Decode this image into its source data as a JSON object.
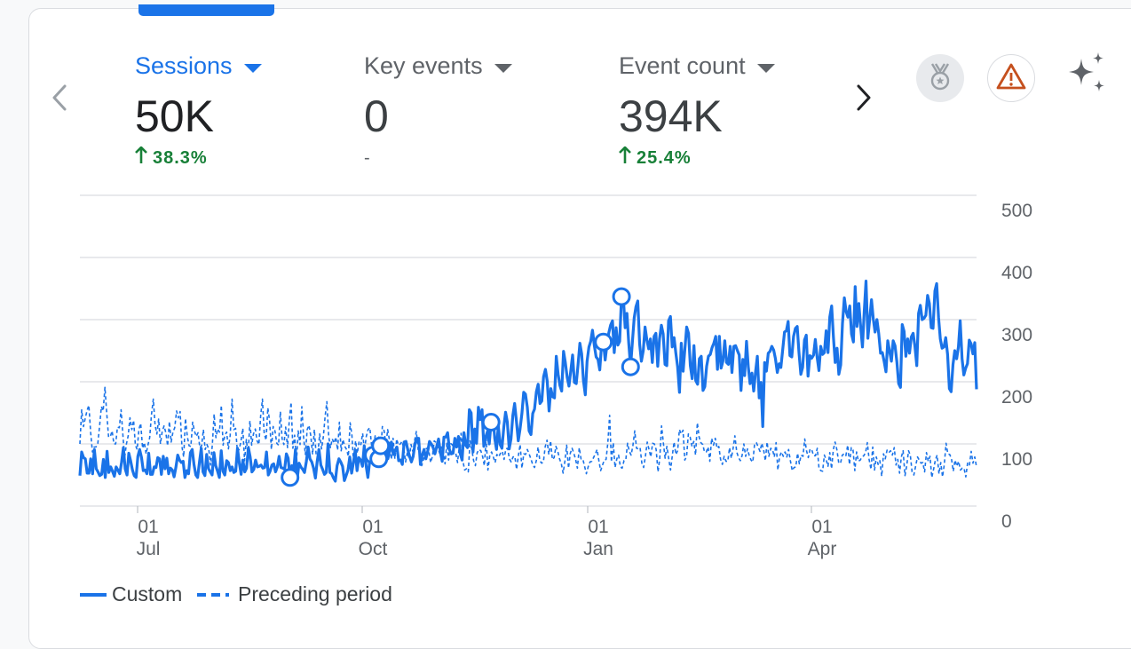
{
  "metrics": [
    {
      "label": "Sessions",
      "value": "50K",
      "change": "38.3%",
      "direction": "up",
      "active": true
    },
    {
      "label": "Key events",
      "value": "0",
      "change": "-",
      "direction": "none",
      "active": false
    },
    {
      "label": "Event count",
      "value": "394K",
      "change": "25.4%",
      "direction": "up",
      "active": false
    }
  ],
  "icons": {
    "prev": "chevron-left-icon",
    "next": "chevron-right-icon",
    "dropdown": "caret-down-icon",
    "badge": "medal-badge-icon",
    "warning": "warning-triangle-icon",
    "insights": "sparkle-icon"
  },
  "colors": {
    "accent": "#1a73e8",
    "positive": "#188038",
    "warning": "#c5501e",
    "custom_series": "#1a73e8",
    "preceding_series": "#1a73e8"
  },
  "chart_data": {
    "type": "line",
    "ylim": [
      0,
      500
    ],
    "yticks": [
      "500",
      "400",
      "300",
      "200",
      "100",
      "0"
    ],
    "xticks": [
      {
        "day": "01",
        "month": "Jul"
      },
      {
        "day": "01",
        "month": "Oct"
      },
      {
        "day": "01",
        "month": "Jan"
      },
      {
        "day": "01",
        "month": "Apr"
      }
    ],
    "grid": true,
    "legend_position": "bottom-left",
    "series": [
      {
        "name": "Custom",
        "style": "solid",
        "values": [
          49,
          87,
          78,
          76,
          53,
          53,
          76,
          52,
          91,
          60,
          55,
          49,
          51,
          75,
          46,
          88,
          54,
          63,
          56,
          48,
          63,
          58,
          52,
          70,
          94,
          60,
          50,
          85,
          73,
          58,
          49,
          46,
          80,
          91,
          78,
          57,
          58,
          52,
          85,
          51,
          51,
          63,
          62,
          78,
          76,
          51,
          80,
          60,
          77,
          52,
          61,
          58,
          47,
          62,
          82,
          74,
          70,
          72,
          46,
          57,
          52,
          86,
          91,
          67,
          50,
          46,
          71,
          93,
          55,
          49,
          83,
          60,
          55,
          50,
          86,
          65,
          56,
          46,
          89,
          56,
          50,
          73,
          70,
          57,
          63,
          54,
          56,
          93,
          69,
          51,
          74,
          55,
          61,
          94,
          79,
          55,
          59,
          74,
          63,
          64,
          66,
          61,
          62,
          87,
          50,
          56,
          66,
          68,
          55,
          63,
          80,
          62,
          61,
          59,
          84,
          77,
          46,
          65,
          57,
          91,
          44,
          69,
          63,
          59,
          54,
          72,
          95,
          76,
          71,
          61,
          45,
          72,
          91,
          66,
          59,
          51,
          54,
          100,
          54,
          52,
          45,
          40,
          65,
          76,
          71,
          64,
          41,
          49,
          58,
          79,
          53,
          70,
          90,
          57,
          78,
          74,
          64,
          97,
          65,
          46,
          73,
          94,
          82,
          74,
          65,
          76,
          97,
          78,
          81,
          95,
          76,
          89,
          103,
          83,
          89,
          95,
          73,
          74,
          67,
          103,
          104,
          91,
          80,
          71,
          80,
          101,
          109,
          109,
          67,
          82,
          91,
          76,
          88,
          104,
          100,
          94,
          84,
          96,
          108,
          87,
          72,
          111,
          111,
          118,
          91,
          84,
          85,
          109,
          95,
          112,
          84,
          74,
          118,
          98,
          94,
          155,
          150,
          87,
          124,
          101,
          159,
          139,
          155,
          96,
          111,
          120,
          100,
          135,
          147,
          109,
          91,
          129,
          99,
          93,
          127,
          151,
          135,
          92,
          108,
          146,
          165,
          137,
          105,
          124,
          149,
          183,
          180,
          159,
          121,
          115,
          149,
          156,
          184,
          196,
          165,
          169,
          208,
          220,
          201,
          153,
          189,
          176,
          174,
          241,
          212,
          194,
          185,
          249,
          231,
          207,
          193,
          217,
          243,
          199,
          197,
          227,
          262,
          245,
          202,
          179,
          233,
          256,
          265,
          283,
          258,
          240,
          236,
          219,
          260,
          264,
          235,
          261,
          279,
          291,
          298,
          247,
          287,
          259,
          265,
          337,
          337,
          287,
          310,
          263,
          224,
          263,
          303,
          321,
          330,
          261,
          233,
          250,
          288,
          268,
          253,
          269,
          231,
          273,
          278,
          225,
          269,
          291,
          277,
          228,
          226,
          298,
          305,
          256,
          271,
          246,
          224,
          183,
          262,
          217,
          253,
          288,
          278,
          226,
          205,
          258,
          202,
          196,
          237,
          241,
          186,
          192,
          225,
          241,
          244,
          255,
          262,
          273,
          220,
          273,
          222,
          233,
          266,
          231,
          228,
          257,
          215,
          257,
          258,
          250,
          243,
          186,
          236,
          210,
          265,
          224,
          197,
          214,
          185,
          216,
          241,
          174,
          199,
          128,
          231,
          217,
          246,
          249,
          257,
          251,
          237,
          215,
          229,
          223,
          252,
          280,
          282,
          297,
          242,
          240,
          273,
          286,
          289,
          247,
          212,
          223,
          267,
          275,
          209,
          242,
          238,
          243,
          268,
          240,
          218,
          257,
          244,
          247,
          282,
          247,
          304,
          322,
          272,
          231,
          254,
          212,
          227,
          294,
          335,
          313,
          304,
          322,
          277,
          264,
          353,
          289,
          326,
          290,
          256,
          313,
          362,
          270,
          300,
          332,
          301,
          280,
          300,
          278,
          246,
          247,
          233,
          216,
          266,
          249,
          233,
          266,
          258,
          233,
          197,
          191,
          292,
          281,
          241,
          269,
          246,
          272,
          278,
          257,
          226,
          310,
          323,
          300,
          302,
          307,
          339,
          326,
          287,
          286,
          346,
          358,
          304,
          269,
          254,
          256,
          271,
          244,
          189,
          184,
          228,
          250,
          237,
          256,
          298,
          237,
          211,
          222,
          229,
          267,
          261,
          245,
          263,
          188
        ]
      },
      {
        "name": "Preceding period",
        "style": "dashed",
        "values": [
          100,
          155,
          128,
          141,
          154,
          162,
          119,
          87,
          95,
          95,
          101,
          129,
          160,
          153,
          191,
          150,
          111,
          112,
          121,
          100,
          100,
          127,
          126,
          155,
          115,
          78,
          100,
          113,
          142,
          123,
          138,
          98,
          91,
          124,
          133,
          93,
          102,
          84,
          98,
          110,
          147,
          172,
          130,
          116,
          140,
          100,
          120,
          129,
          118,
          97,
          136,
          103,
          119,
          126,
          153,
          142,
          152,
          96,
          79,
          141,
          112,
          97,
          96,
          135,
          121,
          112,
          118,
          94,
          97,
          123,
          91,
          99,
          92,
          66,
          99,
          148,
          110,
          124,
          119,
          162,
          98,
          114,
          119,
          92,
          114,
          172,
          123,
          125,
          88,
          91,
          104,
          125,
          73,
          107,
          82,
          137,
          98,
          116,
          124,
          105,
          99,
          145,
          172,
          117,
          106,
          158,
          137,
          91,
          128,
          121,
          101,
          98,
          152,
          108,
          99,
          127,
          94,
          139,
          167,
          93,
          114,
          69,
          121,
          99,
          160,
          110,
          83,
          123,
          130,
          113,
          83,
          123,
          83,
          85,
          116,
          92,
          111,
          144,
          168,
          113,
          94,
          108,
          101,
          111,
          90,
          135,
          89,
          107,
          96,
          91,
          80,
          134,
          114,
          67,
          105,
          85,
          104,
          99,
          117,
          89,
          112,
          123,
          126,
          97,
          91,
          113,
          84,
          111,
          83,
          128,
          121,
          98,
          123,
          105,
          75,
          109,
          76,
          108,
          98,
          100,
          104,
          92,
          71,
          87,
          76,
          99,
          88,
          105,
          120,
          91,
          89,
          65,
          75,
          92,
          93,
          88,
          70,
          80,
          105,
          102,
          94,
          85,
          95,
          89,
          68,
          101,
          74,
          101,
          99,
          87,
          85,
          70,
          97,
          117,
          73,
          58,
          60,
          55,
          105,
          91,
          73,
          65,
          86,
          91,
          89,
          80,
          65,
          109,
          58,
          81,
          87,
          79,
          70,
          83,
          79,
          85,
          88,
          75,
          92,
          93,
          76,
          71,
          79,
          80,
          59,
          81,
          99,
          61,
          84,
          83,
          91,
          84,
          76,
          67,
          62,
          73,
          95,
          73,
          69,
          71,
          96,
          106,
          83,
          105,
          75,
          78,
          96,
          88,
          76,
          68,
          53,
          72,
          98,
          61,
          85,
          93,
          85,
          75,
          61,
          94,
          76,
          76,
          64,
          52,
          63,
          71,
          72,
          78,
          84,
          91,
          73,
          57,
          66,
          74,
          75,
          102,
          146,
          71,
          102,
          62,
          76,
          82,
          63,
          61,
          73,
          74,
          101,
          88,
          82,
          97,
          121,
          93,
          92,
          94,
          69,
          62,
          80,
          103,
          91,
          79,
          101,
          100,
          91,
          55,
          77,
          129,
          102,
          77,
          96,
          76,
          58,
          81,
          103,
          83,
          89,
          123,
          116,
          122,
          74,
          80,
          116,
          111,
          96,
          104,
          82,
          134,
          111,
          102,
          99,
          87,
          87,
          95,
          72,
          109,
          98,
          109,
          93,
          96,
          75,
          67,
          80,
          72,
          72,
          94,
          77,
          93,
          113,
          87,
          78,
          73,
          81,
          100,
          80,
          92,
          81,
          74,
          71,
          100,
          102,
          95,
          88,
          101,
          91,
          73,
          103,
          80,
          93,
          91,
          79,
          102,
          58,
          80,
          87,
          80,
          87,
          79,
          91,
          73,
          57,
          62,
          63,
          85,
          68,
          82,
          80,
          108,
          89,
          78,
          92,
          90,
          81,
          81,
          93,
          60,
          57,
          56,
          82,
          74,
          64,
          86,
          60,
          91,
          103,
          90,
          69,
          69,
          82,
          84,
          81,
          98,
          67,
          94,
          90,
          57,
          87,
          72,
          74,
          79,
          81,
          86,
          102,
          75,
          59,
          95,
          58,
          79,
          67,
          73,
          48,
          84,
          76,
          90,
          86,
          89,
          82,
          94,
          66,
          75,
          53,
          79,
          89,
          49,
          65,
          89,
          82,
          55,
          50,
          65,
          79,
          74,
          69,
          70,
          55,
          86,
          72,
          80,
          46,
          59,
          74,
          82,
          52,
          70,
          47,
          67,
          101,
          84,
          83,
          76,
          56,
          74,
          64,
          72,
          58,
          61,
          61,
          47,
          69,
          65,
          88,
          69,
          79,
          63
        ]
      }
    ]
  }
}
